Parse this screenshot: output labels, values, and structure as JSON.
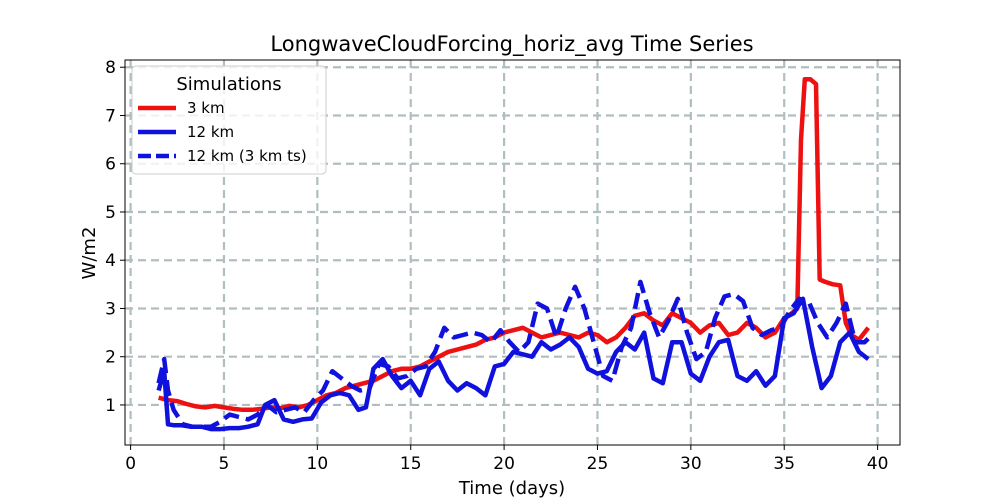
{
  "chart_data": {
    "type": "line",
    "title": "LongwaveCloudForcing_horiz_avg Time Series",
    "xlabel": "Time (days)",
    "ylabel": "W/m2",
    "xlim": [
      -0.3,
      41.2
    ],
    "ylim": [
      0.17,
      8.15
    ],
    "xticks": [
      0,
      5,
      10,
      15,
      20,
      25,
      30,
      35,
      40
    ],
    "yticks": [
      1,
      2,
      3,
      4,
      5,
      6,
      7,
      8
    ],
    "xtick_labels": [
      "0",
      "5",
      "10",
      "15",
      "20",
      "25",
      "30",
      "35",
      "40"
    ],
    "ytick_labels": [
      "1",
      "2",
      "3",
      "4",
      "5",
      "6",
      "7",
      "8"
    ],
    "grid": true,
    "legend": {
      "title": "Simulations",
      "position": "top-left"
    },
    "series": [
      {
        "name": "3 km",
        "color": "#ee1111",
        "style": "solid",
        "x": [
          1.5,
          2.0,
          2.5,
          3.0,
          3.5,
          4.0,
          4.5,
          5.0,
          5.5,
          6.0,
          6.5,
          7.0,
          7.5,
          8.0,
          8.5,
          9.0,
          9.5,
          10.0,
          10.5,
          11.0,
          11.5,
          12.0,
          12.5,
          13.0,
          13.5,
          14.0,
          14.5,
          15.0,
          15.5,
          16.0,
          16.5,
          17.0,
          17.5,
          18.0,
          18.5,
          19.0,
          19.5,
          20.0,
          20.5,
          21.0,
          21.5,
          22.0,
          22.5,
          23.0,
          23.5,
          24.0,
          24.5,
          25.0,
          25.5,
          26.0,
          26.5,
          27.0,
          27.5,
          28.0,
          28.5,
          29.0,
          29.5,
          30.0,
          30.5,
          31.0,
          31.5,
          32.0,
          32.5,
          33.0,
          33.5,
          34.0,
          34.5,
          35.0,
          35.4,
          35.7,
          35.9,
          36.1,
          36.4,
          36.7,
          36.9,
          37.2,
          37.6,
          38.0,
          38.3,
          38.6,
          39.0,
          39.5
        ],
        "values": [
          1.15,
          1.1,
          1.08,
          1.02,
          0.97,
          0.95,
          0.98,
          0.95,
          0.92,
          0.9,
          0.9,
          0.92,
          0.95,
          0.93,
          0.98,
          0.95,
          1.0,
          1.1,
          1.2,
          1.25,
          1.35,
          1.4,
          1.45,
          1.5,
          1.6,
          1.7,
          1.75,
          1.75,
          1.8,
          1.9,
          2.0,
          2.1,
          2.15,
          2.2,
          2.25,
          2.35,
          2.4,
          2.5,
          2.55,
          2.6,
          2.5,
          2.4,
          2.45,
          2.5,
          2.45,
          2.4,
          2.5,
          2.45,
          2.3,
          2.4,
          2.6,
          2.85,
          2.9,
          2.75,
          2.65,
          2.9,
          2.8,
          2.7,
          2.5,
          2.65,
          2.7,
          2.45,
          2.5,
          2.7,
          2.6,
          2.4,
          2.5,
          2.8,
          2.9,
          3.0,
          6.5,
          7.75,
          7.75,
          7.65,
          3.6,
          3.55,
          3.5,
          3.48,
          2.7,
          2.45,
          2.35,
          2.6
        ]
      },
      {
        "name": "12 km",
        "color": "#1111dd",
        "style": "solid",
        "x": [
          1.5,
          1.8,
          2.0,
          2.3,
          2.7,
          3.2,
          3.8,
          4.3,
          4.8,
          5.3,
          5.8,
          6.3,
          6.8,
          7.2,
          7.7,
          8.2,
          8.7,
          9.2,
          9.7,
          10.2,
          10.7,
          11.2,
          11.7,
          12.2,
          12.6,
          13.0,
          13.5,
          14.0,
          14.5,
          15.0,
          15.5,
          16.0,
          16.5,
          17.0,
          17.5,
          18.0,
          18.5,
          19.0,
          19.5,
          20.0,
          20.5,
          21.0,
          21.5,
          22.0,
          22.5,
          23.0,
          23.5,
          24.0,
          24.5,
          25.0,
          25.5,
          26.0,
          26.5,
          27.0,
          27.5,
          28.0,
          28.5,
          29.0,
          29.5,
          30.0,
          30.5,
          31.0,
          31.5,
          32.0,
          32.5,
          33.0,
          33.5,
          34.0,
          34.5,
          35.0,
          35.5,
          36.0,
          36.5,
          37.0,
          37.5,
          38.0,
          38.5,
          39.0,
          39.5
        ],
        "values": [
          1.3,
          1.7,
          0.6,
          0.58,
          0.58,
          0.55,
          0.55,
          0.5,
          0.5,
          0.52,
          0.52,
          0.55,
          0.6,
          1.0,
          1.1,
          0.7,
          0.65,
          0.7,
          0.72,
          1.05,
          1.2,
          1.25,
          1.2,
          0.9,
          0.95,
          1.75,
          1.95,
          1.6,
          1.35,
          1.5,
          1.2,
          1.75,
          1.9,
          1.5,
          1.3,
          1.45,
          1.35,
          1.2,
          1.8,
          1.85,
          2.1,
          2.05,
          2.0,
          2.3,
          2.15,
          2.25,
          2.4,
          2.2,
          1.75,
          1.65,
          1.7,
          2.1,
          2.3,
          2.15,
          2.5,
          1.55,
          1.45,
          2.3,
          2.3,
          1.65,
          1.5,
          2.0,
          2.3,
          2.35,
          1.6,
          1.5,
          1.7,
          1.4,
          1.6,
          2.8,
          2.9,
          3.2,
          2.2,
          1.35,
          1.6,
          2.3,
          2.5,
          2.1,
          1.95
        ]
      },
      {
        "name": "12 km (3 km ts)",
        "color": "#1111dd",
        "style": "dashed",
        "x": [
          1.5,
          1.8,
          2.0,
          2.3,
          2.8,
          3.3,
          3.8,
          4.3,
          4.8,
          5.3,
          5.8,
          6.3,
          6.8,
          7.3,
          7.8,
          8.3,
          8.8,
          9.3,
          9.8,
          10.3,
          10.8,
          11.3,
          11.8,
          12.3,
          12.8,
          13.3,
          13.8,
          14.3,
          14.8,
          15.3,
          15.8,
          16.3,
          16.8,
          17.3,
          17.8,
          18.3,
          18.8,
          19.3,
          19.8,
          20.3,
          20.8,
          21.3,
          21.8,
          22.3,
          22.8,
          23.3,
          23.8,
          24.3,
          24.8,
          25.3,
          25.8,
          26.3,
          26.8,
          27.3,
          27.8,
          28.3,
          28.8,
          29.3,
          29.8,
          30.3,
          30.8,
          31.3,
          31.8,
          32.3,
          32.8,
          33.3,
          33.8,
          34.3,
          34.8,
          35.3,
          35.8,
          36.3,
          36.8,
          37.3,
          37.8,
          38.3,
          38.8,
          39.3,
          39.7
        ],
        "values": [
          1.45,
          1.95,
          1.3,
          0.9,
          0.6,
          0.55,
          0.55,
          0.55,
          0.65,
          0.8,
          0.75,
          0.7,
          0.8,
          1.0,
          0.85,
          0.9,
          0.95,
          0.85,
          1.1,
          1.3,
          1.7,
          1.55,
          1.4,
          1.3,
          1.35,
          1.85,
          1.8,
          1.55,
          1.6,
          1.75,
          1.8,
          2.1,
          2.6,
          2.4,
          2.45,
          2.5,
          2.45,
          2.3,
          2.55,
          2.3,
          2.1,
          2.3,
          3.1,
          3.0,
          2.4,
          3.0,
          3.45,
          3.0,
          2.3,
          1.6,
          1.5,
          2.2,
          2.6,
          3.55,
          2.9,
          2.4,
          2.75,
          3.2,
          2.5,
          1.95,
          2.1,
          2.8,
          3.25,
          3.3,
          3.15,
          2.6,
          2.45,
          2.55,
          2.6,
          2.95,
          3.2,
          3.15,
          2.7,
          2.4,
          2.7,
          3.1,
          2.3,
          2.3,
          2.45
        ]
      }
    ]
  }
}
